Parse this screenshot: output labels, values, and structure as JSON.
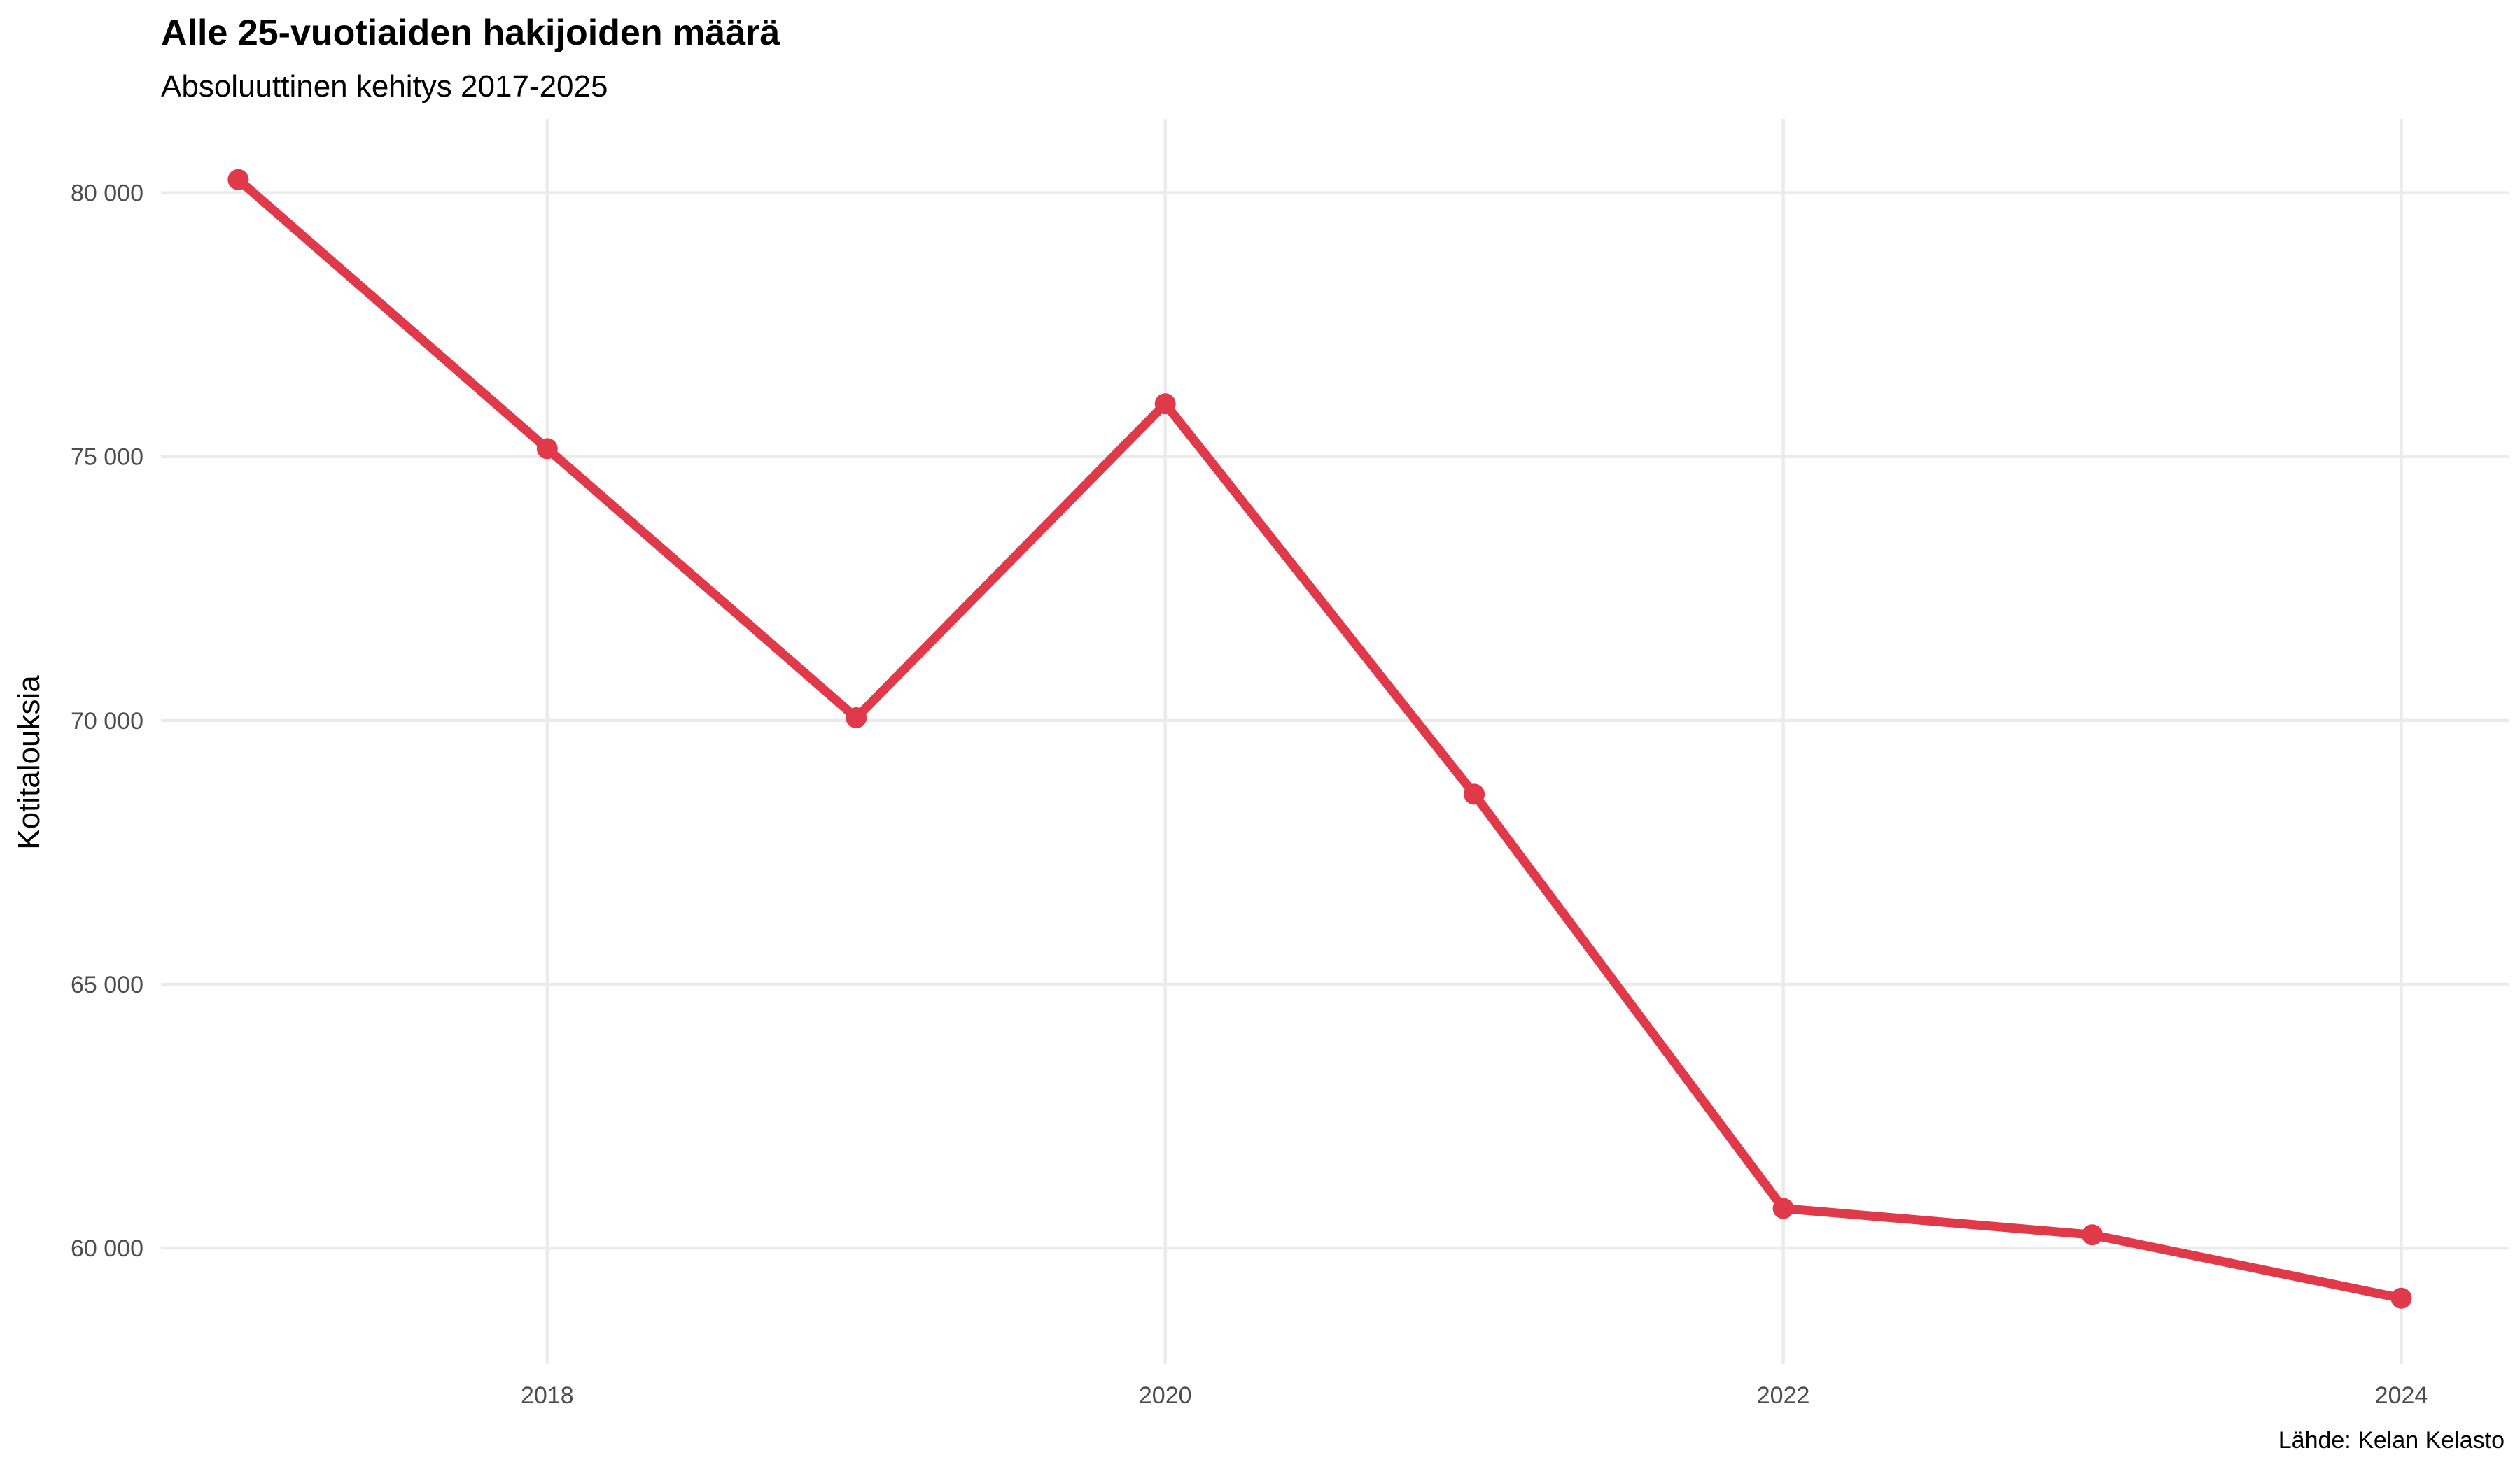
{
  "chart_data": {
    "type": "line",
    "title": "Alle 25-vuotiaiden hakijoiden määrä",
    "subtitle": "Absoluuttinen kehitys 2017-2025",
    "ylabel": "Kotitalouksia",
    "caption": "Lähde: Kelan Kelasto",
    "x": [
      2017,
      2018,
      2019,
      2020,
      2021,
      2022,
      2023,
      2024
    ],
    "y": [
      80250,
      75150,
      70050,
      76000,
      68600,
      60750,
      60250,
      59050
    ],
    "xlim": [
      2016.75,
      2024.35
    ],
    "ylim": [
      57800,
      81400
    ],
    "x_ticks": [
      2018,
      2020,
      2022,
      2024
    ],
    "x_tick_labels": [
      "2018",
      "2020",
      "2022",
      "2024"
    ],
    "y_ticks": [
      60000,
      65000,
      70000,
      75000,
      80000
    ],
    "y_tick_labels": [
      "60 000",
      "65 000",
      "70 000",
      "75 000",
      "80 000"
    ],
    "grid": true,
    "series_color": "#e03a4a",
    "grid_color": "#ebebeb"
  }
}
